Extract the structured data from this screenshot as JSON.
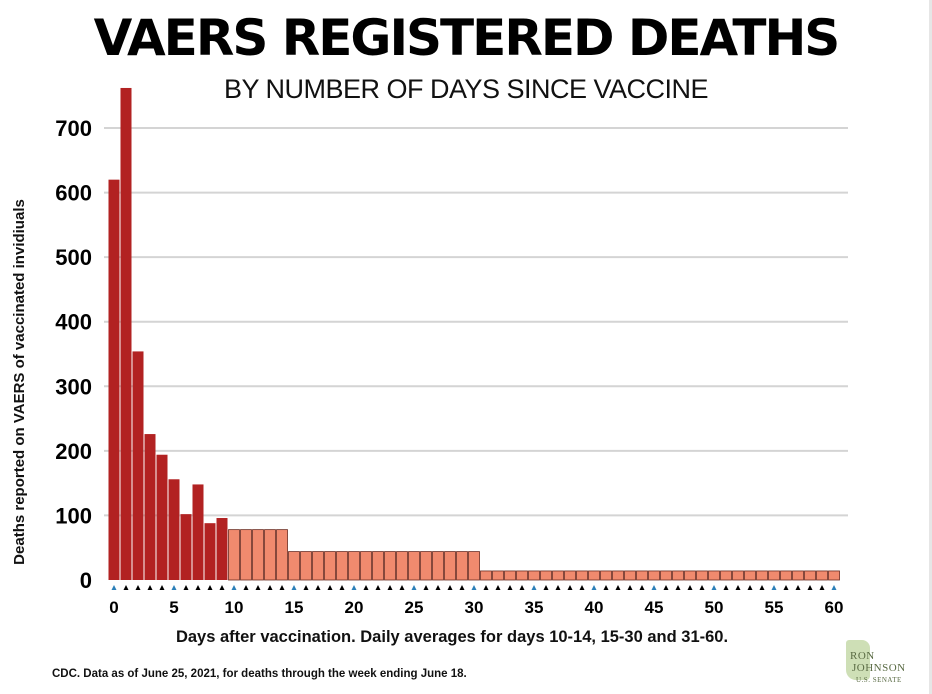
{
  "header": {
    "title": "VAERS REGISTERED DEATHS",
    "subtitle": "BY NUMBER OF DAYS SINCE VACCINE"
  },
  "footer": {
    "source": "CDC. Data as of June 25, 2021, for deaths through the week ending June 18."
  },
  "logo": {
    "line1": "RON",
    "line2": "JOHNSON",
    "line3": "U.S. SENATE"
  },
  "colors": {
    "daily_bar": "#b22222",
    "average_bar": "#f08a6e",
    "average_bar_stroke": "#6b2a1f",
    "grid": "#d4d4d4",
    "tick_marker_black": "#000000",
    "tick_marker_blue": "#2b7fb8"
  },
  "chart_data": {
    "type": "bar",
    "xlabel": "Days after vaccination. Daily averages for days 10-14, 15-30 and 31-60.",
    "ylabel": "Deaths reported on VAERS of vaccinated invidiuals",
    "ylim": [
      0,
      800
    ],
    "yticks": [
      0,
      100,
      200,
      300,
      400,
      500,
      600,
      700
    ],
    "xticks": [
      0,
      5,
      10,
      15,
      20,
      25,
      30,
      35,
      40,
      45,
      50,
      55,
      60
    ],
    "grid": true,
    "x": [
      0,
      1,
      2,
      3,
      4,
      5,
      6,
      7,
      8,
      9,
      10,
      11,
      12,
      13,
      14,
      15,
      16,
      17,
      18,
      19,
      20,
      21,
      22,
      23,
      24,
      25,
      26,
      27,
      28,
      29,
      30,
      31,
      32,
      33,
      34,
      35,
      36,
      37,
      38,
      39,
      40,
      41,
      42,
      43,
      44,
      45,
      46,
      47,
      48,
      49,
      50,
      51,
      52,
      53,
      54,
      55,
      56,
      57,
      58,
      59,
      60
    ],
    "values": [
      620,
      762,
      354,
      226,
      194,
      156,
      102,
      148,
      88,
      96,
      78,
      78,
      78,
      78,
      78,
      44,
      44,
      44,
      44,
      44,
      44,
      44,
      44,
      44,
      44,
      44,
      44,
      44,
      44,
      44,
      44,
      14,
      14,
      14,
      14,
      14,
      14,
      14,
      14,
      14,
      14,
      14,
      14,
      14,
      14,
      14,
      14,
      14,
      14,
      14,
      14,
      14,
      14,
      14,
      14,
      14,
      14,
      14,
      14,
      14,
      14
    ],
    "series_groups": [
      {
        "name": "Daily",
        "from_day": 0,
        "to_day": 9
      },
      {
        "name": "Daily average",
        "from_day": 10,
        "to_day": 60
      }
    ]
  }
}
